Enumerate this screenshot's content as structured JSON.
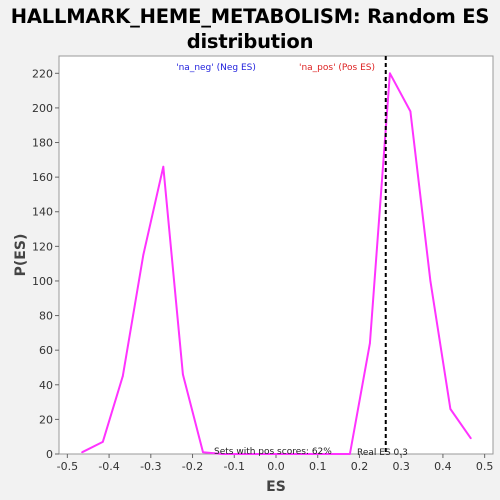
{
  "chart_data": {
    "type": "line",
    "title": "HALLMARK_HEME_METABOLISM: Random ES distribution",
    "xlabel": "ES",
    "ylabel": "P(ES)",
    "xlim": [
      -0.52,
      0.52
    ],
    "ylim": [
      0,
      230
    ],
    "xticks": [
      -0.5,
      -0.4,
      -0.3,
      -0.2,
      -0.1,
      0.0,
      0.1,
      0.2,
      0.3,
      0.4,
      0.5
    ],
    "xtick_labels": [
      "-0.5",
      "-0.4",
      "-0.3",
      "-0.2",
      "-0.1",
      "0.0",
      "0.1",
      "0.2",
      "0.3",
      "0.4",
      "0.5"
    ],
    "yticks": [
      0,
      20,
      40,
      60,
      80,
      100,
      120,
      140,
      160,
      180,
      200,
      220
    ],
    "ytick_labels": [
      "0",
      "20",
      "40",
      "60",
      "80",
      "100",
      "120",
      "140",
      "160",
      "180",
      "200",
      "220"
    ],
    "grid": false,
    "legend": [
      {
        "label": "'na_neg' (Neg ES)",
        "color": "#2222dd"
      },
      {
        "label": "'na_pos' (Pos ES)",
        "color": "#dd2222"
      }
    ],
    "series": [
      {
        "color": "#ff33ff",
        "x": [
          -0.465,
          -0.415,
          -0.367,
          -0.318,
          -0.27,
          -0.223,
          -0.175,
          -0.128,
          0.177,
          0.225,
          0.273,
          0.322,
          0.37,
          0.418,
          0.467
        ],
        "y": [
          1,
          7,
          45,
          115,
          166,
          46,
          1,
          0,
          0,
          64,
          220,
          198,
          100,
          26,
          9
        ]
      }
    ],
    "reference_line": {
      "x": 0.263,
      "label": "Real ES 0.3",
      "style": "dashed",
      "color": "#000000"
    },
    "annotation": "Sets with pos scores: 62%"
  },
  "colors": {
    "background": "#f2f2f2",
    "plot_background": "#ffffff",
    "line": "#ff33ff"
  }
}
